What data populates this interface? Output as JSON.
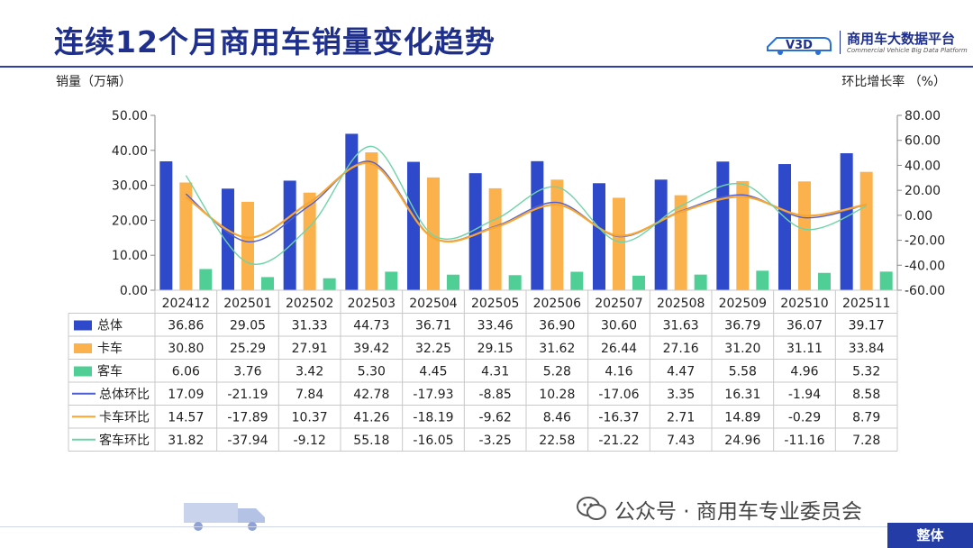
{
  "header": {
    "title": "连续12个月商用车销量变化趋势",
    "logo_text": "商用车大数据平台",
    "logo_subtext": "Commercial Vehicle Big Data Platform",
    "logo_mark_text": "V3D",
    "brand_color": "#2b3aa0"
  },
  "footer": {
    "wechat_label": "公众号 · 商用车专业委员会",
    "section_tag": "整体"
  },
  "chart_data": {
    "type": "bar",
    "ylabel": "销量（万辆）",
    "y2label": "环比增长率 （%）",
    "ylim": [
      0,
      50
    ],
    "y_ticks": [
      "50.00",
      "40.00",
      "30.00",
      "20.00",
      "10.00",
      "0.00"
    ],
    "y2lim": [
      -60,
      80
    ],
    "y2_ticks": [
      "80.00",
      "60.00",
      "40.00",
      "20.00",
      "0.00",
      "-20.00",
      "-40.00",
      "-60.00"
    ],
    "categories": [
      "202412",
      "202501",
      "202502",
      "202503",
      "202504",
      "202505",
      "202506",
      "202507",
      "202508",
      "202509",
      "202510",
      "202511"
    ],
    "series": [
      {
        "name": "总体",
        "kind": "bar",
        "axis": "left",
        "color": "#2e49c9",
        "values": [
          36.86,
          29.05,
          31.33,
          44.73,
          36.71,
          33.46,
          36.9,
          30.6,
          31.63,
          36.79,
          36.07,
          39.17
        ],
        "labels": [
          "36.86",
          "29.05",
          "31.33",
          "44.73",
          "36.71",
          "33.46",
          "36.90",
          "30.60",
          "31.63",
          "36.79",
          "36.07",
          "39.17"
        ]
      },
      {
        "name": "卡车",
        "kind": "bar",
        "axis": "left",
        "color": "#fbb24c",
        "values": [
          30.8,
          25.29,
          27.91,
          39.42,
          32.25,
          29.15,
          31.62,
          26.44,
          27.16,
          31.2,
          31.11,
          33.84
        ],
        "labels": [
          "30.80",
          "25.29",
          "27.91",
          "39.42",
          "32.25",
          "29.15",
          "31.62",
          "26.44",
          "27.16",
          "31.20",
          "31.11",
          "33.84"
        ]
      },
      {
        "name": "客车",
        "kind": "bar",
        "axis": "left",
        "color": "#4fcf96",
        "values": [
          6.06,
          3.76,
          3.42,
          5.3,
          4.45,
          4.31,
          5.28,
          4.16,
          4.47,
          5.58,
          4.96,
          5.32
        ],
        "labels": [
          "6.06",
          "3.76",
          "3.42",
          "5.30",
          "4.45",
          "4.31",
          "5.28",
          "4.16",
          "4.47",
          "5.58",
          "4.96",
          "5.32"
        ]
      },
      {
        "name": "总体环比",
        "kind": "line",
        "axis": "right",
        "color": "#4e5fd4",
        "values": [
          17.09,
          -21.19,
          7.84,
          42.78,
          -17.93,
          -8.85,
          10.28,
          -17.06,
          3.35,
          16.31,
          -1.94,
          8.58
        ],
        "labels": [
          "17.09",
          "-21.19",
          "7.84",
          "42.78",
          "-17.93",
          "-8.85",
          "10.28",
          "-17.06",
          "3.35",
          "16.31",
          "-1.94",
          "8.58"
        ]
      },
      {
        "name": "卡车环比",
        "kind": "line",
        "axis": "right",
        "color": "#f8a531",
        "values": [
          14.57,
          -17.89,
          10.37,
          41.26,
          -18.19,
          -9.62,
          8.46,
          -16.37,
          2.71,
          14.89,
          -0.29,
          8.79
        ],
        "labels": [
          "14.57",
          "-17.89",
          "10.37",
          "41.26",
          "-18.19",
          "-9.62",
          "8.46",
          "-16.37",
          "2.71",
          "14.89",
          "-0.29",
          "8.79"
        ]
      },
      {
        "name": "客车环比",
        "kind": "line",
        "axis": "right",
        "color": "#6fd3a8",
        "values": [
          31.82,
          -37.94,
          -9.12,
          55.18,
          -16.05,
          -3.25,
          22.58,
          -21.22,
          7.43,
          24.96,
          -11.16,
          7.28
        ],
        "labels": [
          "31.82",
          "-37.94",
          "-9.12",
          "55.18",
          "-16.05",
          "-3.25",
          "22.58",
          "-21.22",
          "7.43",
          "24.96",
          "-11.16",
          "7.28"
        ]
      }
    ],
    "grid": false,
    "legend": "data table below plot"
  }
}
